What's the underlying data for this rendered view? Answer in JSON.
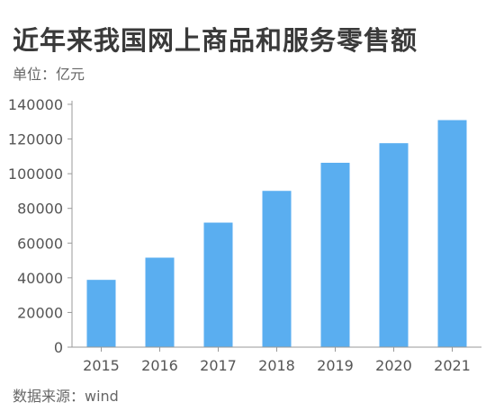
{
  "title": "近年来我国网上商品和服务零售额",
  "unit_label": "单位：亿元",
  "source_label": "数据来源：wind",
  "colors": {
    "bar": "#5aaef0",
    "axis": "#999999",
    "grid": "#e8e8e8"
  },
  "chart_data": {
    "type": "bar",
    "categories": [
      "2015",
      "2016",
      "2017",
      "2018",
      "2019",
      "2020",
      "2021"
    ],
    "values": [
      38800,
      51600,
      71800,
      90100,
      106300,
      117600,
      130900
    ],
    "ylim": [
      0,
      140000
    ],
    "yticks": [
      0,
      20000,
      40000,
      60000,
      80000,
      100000,
      120000,
      140000
    ],
    "ytick_labels": [
      "0",
      "20000",
      "40000",
      "60000",
      "80000",
      "100000",
      "120000",
      "140000"
    ],
    "grid": false,
    "legend": "none"
  }
}
